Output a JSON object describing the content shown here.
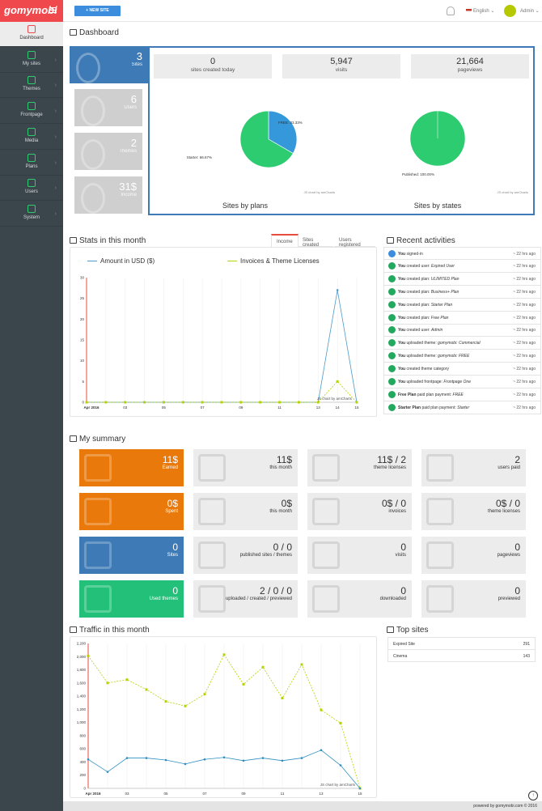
{
  "app": {
    "logo": "gomymobi"
  },
  "sidebar": {
    "items": [
      {
        "label": "Dashboard",
        "icon": "home-icon",
        "active": true
      },
      {
        "label": "My sites",
        "icon": "globe-icon"
      },
      {
        "label": "Themes",
        "icon": "grid-icon"
      },
      {
        "label": "Frontpage",
        "icon": "page-icon"
      },
      {
        "label": "Media",
        "icon": "cloud-icon"
      },
      {
        "label": "Plans",
        "icon": "gift-icon"
      },
      {
        "label": "Users",
        "icon": "user-icon"
      },
      {
        "label": "System",
        "icon": "gear-icon"
      }
    ]
  },
  "topbar": {
    "new_site": "+ NEW SITE",
    "language": "English",
    "user": "Admin"
  },
  "dashboard": {
    "title": "Dashboard",
    "tiles": [
      {
        "value": "3",
        "label": "Sites",
        "color": "#3d7ab6"
      },
      {
        "value": "6",
        "label": "Users",
        "color": "#cfcfcf"
      },
      {
        "value": "2",
        "label": "Themes",
        "color": "#cfcfcf"
      },
      {
        "value": "31$",
        "label": "Income",
        "color": "#cfcfcf"
      }
    ],
    "stats": [
      {
        "value": "0",
        "label": "sites created today"
      },
      {
        "value": "5,947",
        "label": "visits"
      },
      {
        "value": "21,664",
        "label": "pageviews"
      }
    ],
    "pies": [
      {
        "title": "Sites by plans",
        "credit": "JS chart by amCharts",
        "slices": [
          {
            "label": "FREE: 33.33%",
            "value": 33.33,
            "color": "#3498db"
          },
          {
            "label": "Starter: 66.67%",
            "value": 66.67,
            "color": "#2ecc71"
          }
        ]
      },
      {
        "title": "Sites by states",
        "credit": "JS chart by amCharts",
        "slices": [
          {
            "label": "Published: 100.00%",
            "value": 100,
            "color": "#2ecc71"
          }
        ]
      }
    ]
  },
  "stats_month": {
    "title": "Stats in this month",
    "tabs": [
      "Income",
      "Sites created",
      "Users registered"
    ],
    "legend": [
      "Amount in USD ($)",
      "Invoices & Theme Licenses"
    ],
    "credit": "JS chart by amCharts"
  },
  "activities": {
    "title": "Recent activities",
    "items": [
      {
        "pre": "You",
        "action": " signed-in",
        "obj": "",
        "time": "~ 22 hrs ago",
        "color": "#3c8dde"
      },
      {
        "pre": "You",
        "action": " created user: ",
        "obj": "Expired User",
        "time": "~ 22 hrs ago",
        "color": "#23a95f"
      },
      {
        "pre": "You",
        "action": " created plan: ",
        "obj": "ULIMITED Plan",
        "time": "~ 22 hrs ago",
        "color": "#23a95f"
      },
      {
        "pre": "You",
        "action": " created plan: ",
        "obj": "Business+ Plan",
        "time": "~ 22 hrs ago",
        "color": "#23a95f"
      },
      {
        "pre": "You",
        "action": " created plan: ",
        "obj": "Starter Plan",
        "time": "~ 22 hrs ago",
        "color": "#23a95f"
      },
      {
        "pre": "You",
        "action": " created plan: ",
        "obj": "Free Plan",
        "time": "~ 22 hrs ago",
        "color": "#23a95f"
      },
      {
        "pre": "You",
        "action": " created user: ",
        "obj": "Admin",
        "time": "~ 22 hrs ago",
        "color": "#23a95f"
      },
      {
        "pre": "You",
        "action": " uploaded theme: ",
        "obj": "gomymobi: Commercial",
        "time": "~ 22 hrs ago",
        "color": "#23a95f"
      },
      {
        "pre": "You",
        "action": " uploaded theme: ",
        "obj": "gomymobi: FREE",
        "time": "~ 22 hrs ago",
        "color": "#23a95f"
      },
      {
        "pre": "You",
        "action": " created theme category",
        "obj": "",
        "time": "~ 22 hrs ago",
        "color": "#23a95f"
      },
      {
        "pre": "You",
        "action": " uploaded frontpage: ",
        "obj": "Frontpage One",
        "time": "~ 22 hrs ago",
        "color": "#23a95f"
      },
      {
        "pre": "Free Plan",
        "action": " paid plan payment: ",
        "obj": "FREE",
        "time": "~ 22 hrs ago",
        "color": "#23a95f"
      },
      {
        "pre": "Starter Plan",
        "action": " paid plan payment: ",
        "obj": "Starter",
        "time": "~ 22 hrs ago",
        "color": "#23a95f"
      }
    ]
  },
  "summary": {
    "title": "My summary",
    "rows": [
      [
        {
          "v": "11$",
          "l": "Earned",
          "c": "#e8790a"
        },
        {
          "v": "11$",
          "l": "this month"
        },
        {
          "v": "11$ / 2",
          "l": "theme licenses"
        },
        {
          "v": "2",
          "l": "users paid"
        }
      ],
      [
        {
          "v": "0$",
          "l": "Spent",
          "c": "#e8790a"
        },
        {
          "v": "0$",
          "l": "this month"
        },
        {
          "v": "0$ / 0",
          "l": "invoices"
        },
        {
          "v": "0$ / 0",
          "l": "theme licenses"
        }
      ],
      [
        {
          "v": "0",
          "l": "Sites",
          "c": "#3d7ab6"
        },
        {
          "v": "0 / 0",
          "l": "published sites / themes"
        },
        {
          "v": "0",
          "l": "visits"
        },
        {
          "v": "0",
          "l": "pageviews"
        }
      ],
      [
        {
          "v": "0",
          "l": "Used themes",
          "c": "#23c07a"
        },
        {
          "v": "2 / 0 / 0",
          "l": "uploaded / created / previewed"
        },
        {
          "v": "0",
          "l": "downloaded"
        },
        {
          "v": "0",
          "l": "previewed"
        }
      ]
    ]
  },
  "traffic": {
    "title": "Traffic in this month",
    "credit": "JS chart by amCharts"
  },
  "top_sites": {
    "title": "Top sites",
    "items": [
      {
        "name": "Expired Site",
        "count": "291"
      },
      {
        "name": "Cinema",
        "count": "143"
      }
    ]
  },
  "footer": {
    "text": "powered by gomymobi.com © 2016"
  },
  "chart_data": [
    {
      "type": "line",
      "x": [
        "Apr 2016",
        "",
        "03",
        "",
        "05",
        "",
        "07",
        "",
        "09",
        "",
        "11",
        "",
        "13",
        "14",
        "15"
      ],
      "series": [
        {
          "name": "Amount in USD ($)",
          "color": "#4c9ac8",
          "values": [
            0,
            0,
            0,
            0,
            0,
            0,
            0,
            0,
            0,
            0,
            0,
            0,
            0,
            27,
            0
          ]
        },
        {
          "name": "Invoices & Theme Licenses",
          "color": "#b8d200",
          "values": [
            0,
            0,
            0,
            0,
            0,
            0,
            0,
            0,
            0,
            0,
            0,
            0,
            0,
            5,
            0
          ]
        }
      ],
      "ylim": [
        0,
        30
      ],
      "yticks": [
        "0",
        "5",
        "10",
        "15",
        "20",
        "25",
        "30"
      ]
    },
    {
      "type": "line",
      "x": [
        "Apr 2016",
        "",
        "03",
        "",
        "05",
        "",
        "07",
        "",
        "09",
        "",
        "11",
        "",
        "13",
        "",
        "15"
      ],
      "series": [
        {
          "color": "#b8d200",
          "values": [
            2010,
            1600,
            1650,
            1500,
            1320,
            1250,
            1430,
            2030,
            1580,
            1840,
            1370,
            1880,
            1190,
            990,
            0
          ]
        },
        {
          "color": "#2f8fc0",
          "values": [
            440,
            250,
            460,
            460,
            430,
            370,
            440,
            470,
            420,
            460,
            420,
            460,
            580,
            350,
            0
          ]
        }
      ],
      "ylim": [
        0,
        2200
      ],
      "yticks": [
        "0",
        "200",
        "400",
        "600",
        "800",
        "1,000",
        "1,200",
        "1,400",
        "1,600",
        "1,800",
        "2,000",
        "2,200"
      ]
    }
  ]
}
